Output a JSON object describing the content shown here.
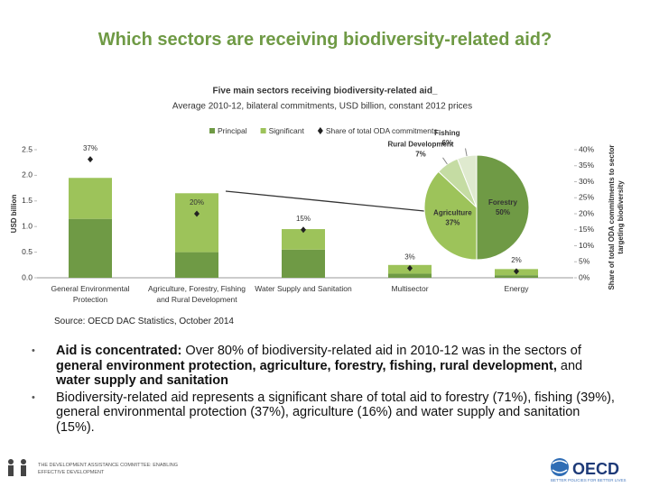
{
  "slide": {
    "title": "Which sectors are receiving biodiversity-related aid?",
    "source": "Source: OECD DAC Statistics, October 2014",
    "bullets": [
      [
        {
          "text": "Aid is concentrated: ",
          "bold": true
        },
        {
          "text": "Over 80% of biodiversity-related aid in 2010-12 was in the sectors of ",
          "bold": false
        },
        {
          "text": "general environment protection, agriculture, forestry, fishing, rural development,",
          "bold": true
        },
        {
          "text": " and ",
          "bold": false
        },
        {
          "text": "water supply and sanitation",
          "bold": true
        }
      ],
      [
        {
          "text": "Biodiversity-related aid represents a significant share of total aid to forestry (71%), fishing (39%), general environmental protection (37%), agriculture (16%) and water supply and sanitation (15%).",
          "bold": false
        }
      ]
    ],
    "footer_left": "THE DEVELOPMENT ASSISTANCE COMMITTEE: ENABLING EFFECTIVE DEVELOPMENT",
    "footer_logo": "OECD",
    "footer_tagline": "BETTER POLICIES FOR BETTER LIVES"
  },
  "chart_data": [
    {
      "type": "bar",
      "title": "Five main sectors receiving biodiversity-related aid_",
      "subtitle": "Average 2010-12, bilateral commitments, USD billion, constant 2012 prices",
      "y_label": "USD billion",
      "y2_label": "Share of total ODA commitments to sector targeting biodiversity",
      "stacked": true,
      "categories": [
        "General Environmental Protection",
        "Agriculture, Forestry, Fishing and Rural Development",
        "Water Supply and Sanitation",
        "Multisector",
        "Energy"
      ],
      "series": [
        {
          "name": "Principal",
          "color": "#6f9a45",
          "values": [
            1.15,
            0.5,
            0.55,
            0.08,
            0.05
          ]
        },
        {
          "name": "Significant",
          "color": "#9dc35a",
          "values": [
            0.8,
            1.15,
            0.4,
            0.17,
            0.12
          ]
        },
        {
          "name": "Share of total ODA commitments",
          "color": "#222222",
          "axis": "y2",
          "marker": "diamond",
          "values": [
            37,
            20,
            15,
            3,
            2
          ],
          "value_labels": [
            "37%",
            "20%",
            "15%",
            "3%",
            "2%"
          ]
        }
      ],
      "ylim": [
        0,
        2.5
      ],
      "yticks": [
        {
          "value": 0,
          "label": "0.0"
        },
        0.5,
        {
          "value": 1,
          "label": "1.0"
        },
        1.5,
        {
          "value": 2,
          "label": "2.0"
        },
        2.5
      ],
      "y2lim": [
        0,
        40
      ],
      "y2ticks": [
        {
          "value": 0,
          "label": "0%"
        },
        {
          "value": 5,
          "label": "5%"
        },
        {
          "value": 10,
          "label": "10%"
        },
        {
          "value": 15,
          "label": "15%"
        },
        {
          "value": 20,
          "label": "20%"
        },
        {
          "value": 25,
          "label": "25%"
        },
        {
          "value": 30,
          "label": "30%"
        },
        {
          "value": 35,
          "label": "35%"
        },
        {
          "value": 40,
          "label": "40%"
        }
      ],
      "grid": false
    },
    {
      "type": "pie",
      "labels": [
        "Forestry",
        "Agriculture",
        "Rural Development",
        "Fishing"
      ],
      "values": [
        50,
        37,
        7,
        6
      ],
      "value_labels": [
        "50%",
        "37%",
        "7%",
        "6%"
      ],
      "colors": [
        "#6f9a45",
        "#9dc35a",
        "#c5dca3",
        "#dfeacf"
      ]
    }
  ]
}
